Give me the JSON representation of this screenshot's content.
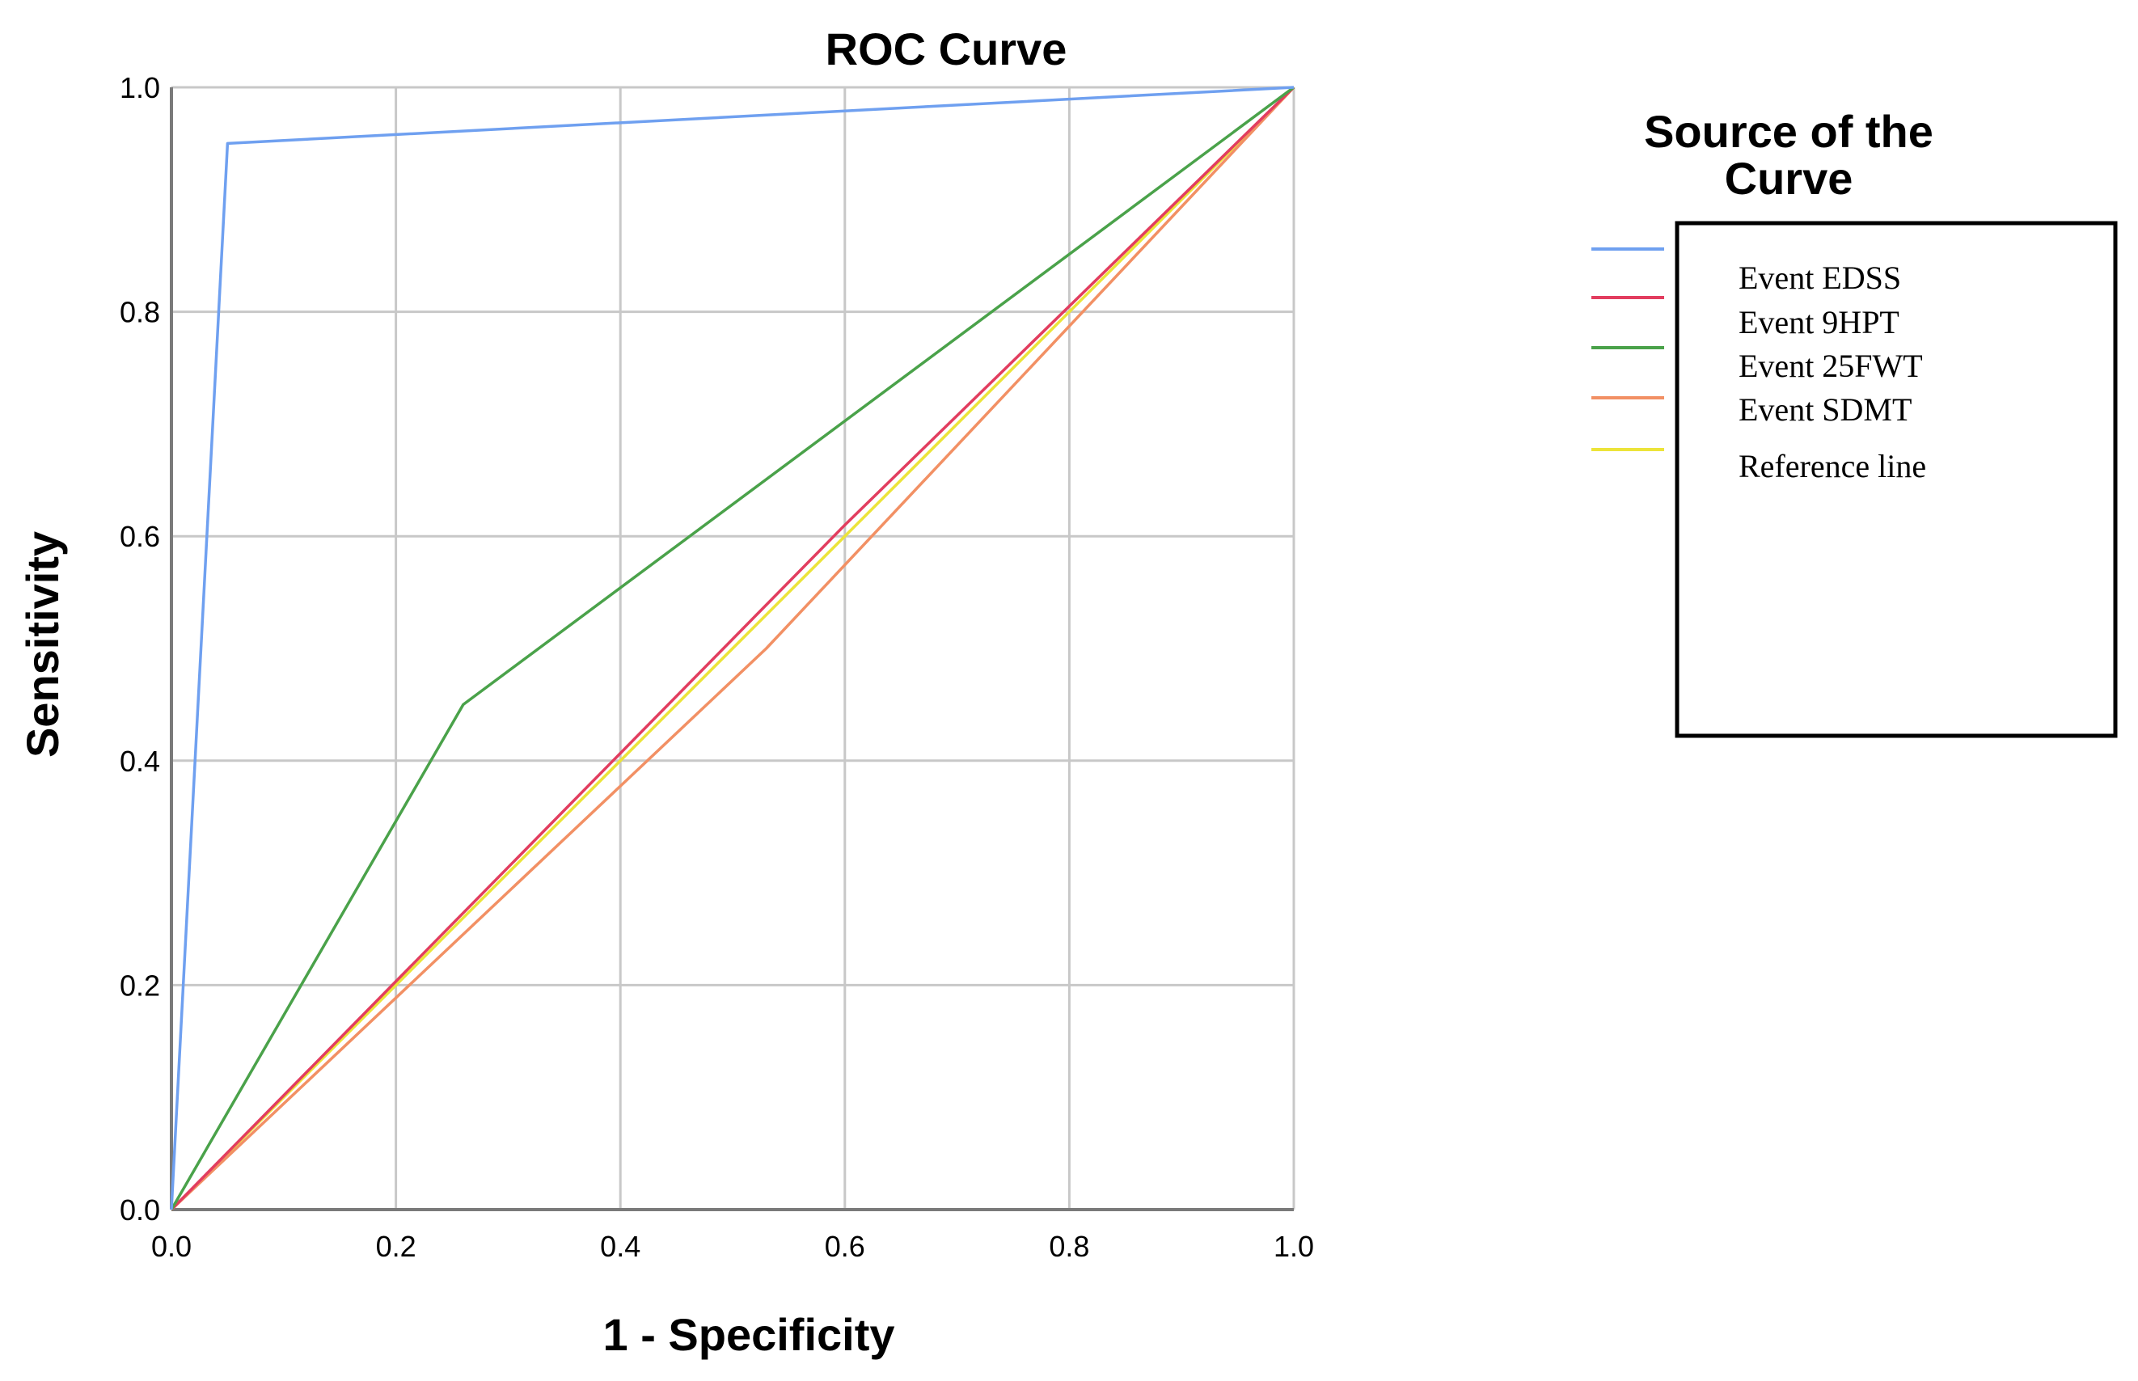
{
  "chart_data": {
    "type": "line",
    "title": "ROC Curve",
    "xlabel": "1 - Specificity",
    "ylabel": "Sensitivity",
    "xlim": [
      0,
      1
    ],
    "ylim": [
      0,
      1
    ],
    "xticks": [
      "0.0",
      "0.2",
      "0.4",
      "0.6",
      "0.8",
      "1.0"
    ],
    "yticks": [
      "0.0",
      "0.2",
      "0.4",
      "0.6",
      "0.8",
      "1.0"
    ],
    "grid": true,
    "legend": {
      "title_line1": "Source of the",
      "title_line2": "Curve",
      "placement": "right"
    },
    "series": [
      {
        "name": "Event EDSS",
        "color": "#6fa0f0",
        "points": [
          [
            0,
            0
          ],
          [
            0.05,
            0.95
          ],
          [
            1,
            1
          ]
        ]
      },
      {
        "name": "Event 9HPT",
        "color": "#e23d5f",
        "points": [
          [
            0,
            0
          ],
          [
            0.6,
            0.61
          ],
          [
            1,
            1
          ]
        ]
      },
      {
        "name": "Event 25FWT",
        "color": "#4aa24a",
        "points": [
          [
            0,
            0
          ],
          [
            0.26,
            0.45
          ],
          [
            1,
            1
          ]
        ]
      },
      {
        "name": "Event SDMT",
        "color": "#f29064",
        "points": [
          [
            0,
            0
          ],
          [
            0.53,
            0.5
          ],
          [
            1,
            1
          ]
        ]
      },
      {
        "name": "Reference line",
        "color": "#ece43a",
        "points": [
          [
            0,
            0
          ],
          [
            1,
            1
          ]
        ]
      }
    ]
  }
}
